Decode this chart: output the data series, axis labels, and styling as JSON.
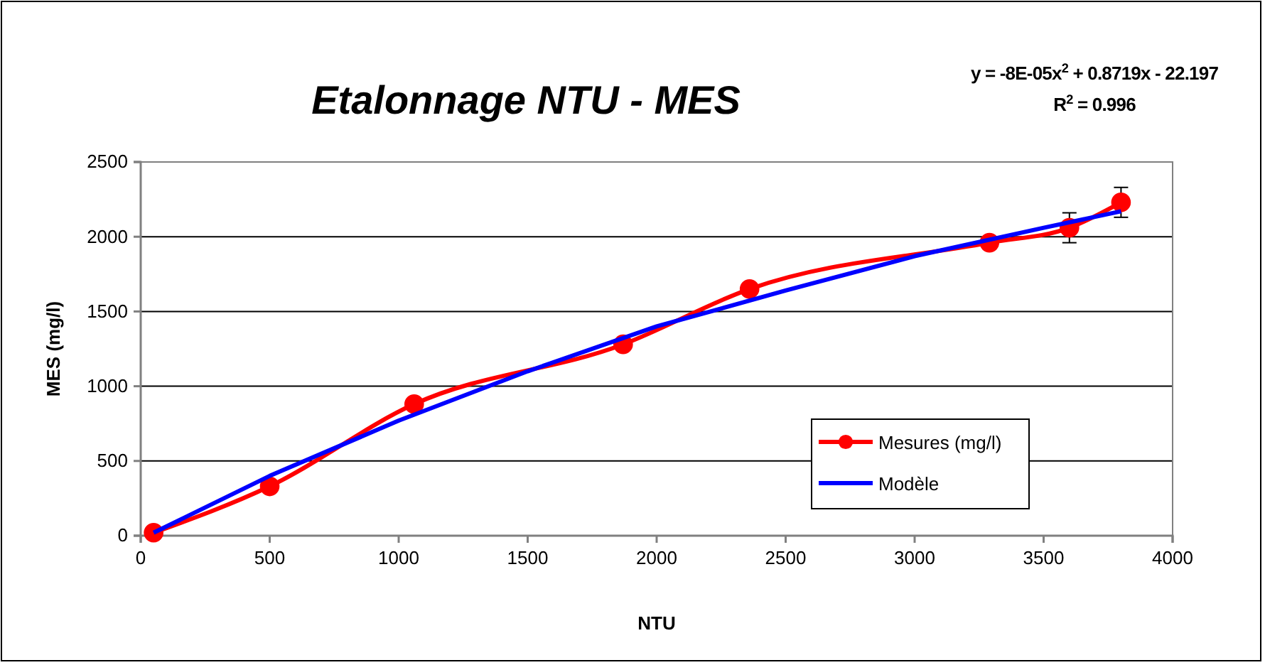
{
  "chart_data": {
    "type": "line",
    "title": "Etalonnage NTU - MES",
    "xlabel": "NTU",
    "ylabel": "MES (mg/l)",
    "annotations": [
      "y = -8E-05x$^{2}$ + 0.8719x - 22.197",
      "R$^{2}$ = 0.996"
    ],
    "xlim": [
      0,
      4000
    ],
    "xticks": [
      0,
      500,
      1000,
      1500,
      2000,
      2500,
      3000,
      3500,
      4000
    ],
    "ylim": [
      0,
      2500
    ],
    "yticks": [
      0,
      500,
      1000,
      1500,
      2000,
      2500
    ],
    "grid": "y",
    "legend": "bottom right",
    "series": [
      {
        "name": "Mesures (mg/l)",
        "color": "#ff0000",
        "marker": "circle",
        "x": [
          50,
          500,
          1060,
          1870,
          2360,
          3290,
          3600,
          3800
        ],
        "values": [
          20,
          330,
          880,
          1280,
          1650,
          1960,
          2060,
          2230
        ],
        "errors": [
          null,
          null,
          null,
          null,
          null,
          null,
          100,
          100
        ]
      },
      {
        "name": "Modèle",
        "color": "#0000ff",
        "marker": "none",
        "x": [
          50,
          500,
          1000,
          1500,
          2000,
          2500,
          3000,
          3500,
          3800
        ],
        "values": [
          20,
          400,
          770,
          1100,
          1400,
          1640,
          1870,
          2060,
          2170
        ]
      }
    ]
  }
}
